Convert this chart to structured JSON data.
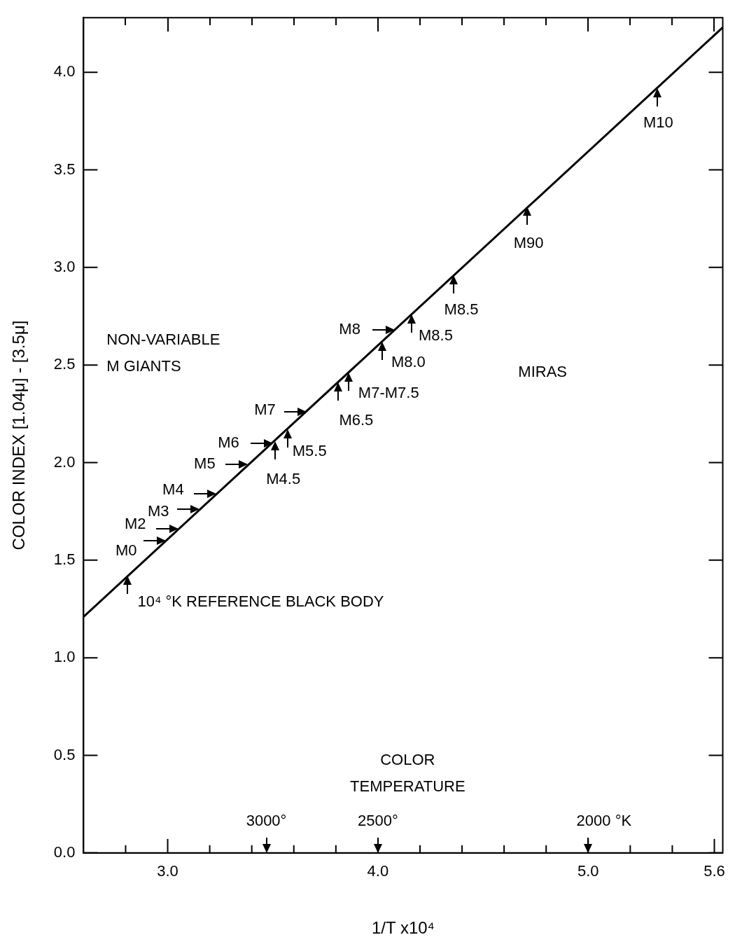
{
  "chart_data": {
    "type": "line",
    "xlabel": "1/T x10⁴",
    "ylabel": "COLOR INDEX [1.04μ] - [3.5μ]",
    "series": [
      {
        "x": [
          2.6,
          5.64
        ],
        "values": [
          1.21,
          4.23
        ],
        "color": "#000000"
      }
    ],
    "marker": "none",
    "line_style": "solid",
    "legend": false,
    "xlim": [
      2.6,
      5.64
    ],
    "ylim": [
      0,
      4.28
    ],
    "xticks": [
      {
        "value": 2.8,
        "label": null
      },
      {
        "value": 3.0,
        "label": "3.0"
      },
      {
        "value": 3.2,
        "label": null
      },
      {
        "value": 3.4,
        "label": null
      },
      {
        "value": 3.6,
        "label": null
      },
      {
        "value": 3.8,
        "label": null
      },
      {
        "value": 4.0,
        "label": "4.0"
      },
      {
        "value": 4.2,
        "label": null
      },
      {
        "value": 4.4,
        "label": null
      },
      {
        "value": 4.6,
        "label": null
      },
      {
        "value": 4.8,
        "label": null
      },
      {
        "value": 5.0,
        "label": "5.0"
      },
      {
        "value": 5.2,
        "label": null
      },
      {
        "value": 5.4,
        "label": null
      },
      {
        "value": 5.6,
        "label": "5.6"
      }
    ],
    "yticks": [
      {
        "value": 0,
        "label": "0.0"
      },
      {
        "value": 0.5,
        "label": "0.5"
      },
      {
        "value": 1.0,
        "label": "1.0"
      },
      {
        "value": 1.5,
        "label": "1.5"
      },
      {
        "value": 2.0,
        "label": "2.0"
      },
      {
        "value": 2.5,
        "label": "2.5"
      },
      {
        "value": 3.0,
        "label": "3.0"
      },
      {
        "value": 3.5,
        "label": "3.5"
      },
      {
        "value": 4.0,
        "label": "4.0"
      }
    ],
    "annotations": [
      "NON-VARIABLE M GIANTS",
      "MIRAS",
      "COLOR TEMPERATURE",
      {
        "text": "10⁴ °K REFERENCE BLACK BODY",
        "x": 2.81,
        "y": 1.42
      },
      {
        "text": "M0",
        "x": 2.99,
        "y": 1.6
      },
      {
        "text": "M2",
        "x": 3.05,
        "y": 1.66
      },
      {
        "text": "M3",
        "x": 3.15,
        "y": 1.76
      },
      {
        "text": "M4",
        "x": 3.23,
        "y": 1.84
      },
      {
        "text": "M5",
        "x": 3.38,
        "y": 1.99
      },
      {
        "text": "M6",
        "x": 3.5,
        "y": 2.1
      },
      {
        "text": "M7",
        "x": 3.66,
        "y": 2.26
      },
      {
        "text": "M8",
        "x": 4.08,
        "y": 2.68
      },
      {
        "text": "M4.5",
        "x": 3.51,
        "y": 2.11
      },
      {
        "text": "M5.5",
        "x": 3.57,
        "y": 2.17
      },
      {
        "text": "M6.5",
        "x": 3.81,
        "y": 2.41
      },
      {
        "text": "M7-M7.5",
        "x": 3.86,
        "y": 2.46
      },
      {
        "text": "M8.0",
        "x": 4.02,
        "y": 2.62
      },
      {
        "text": "M8.5",
        "x": 4.16,
        "y": 2.76
      },
      {
        "text": "M8.5",
        "x": 4.36,
        "y": 2.96
      },
      {
        "text": "M90",
        "x": 4.71,
        "y": 3.31
      },
      {
        "text": "M10",
        "x": 5.33,
        "y": 3.92
      },
      "3000°",
      "2500°",
      "2000 °K"
    ]
  }
}
